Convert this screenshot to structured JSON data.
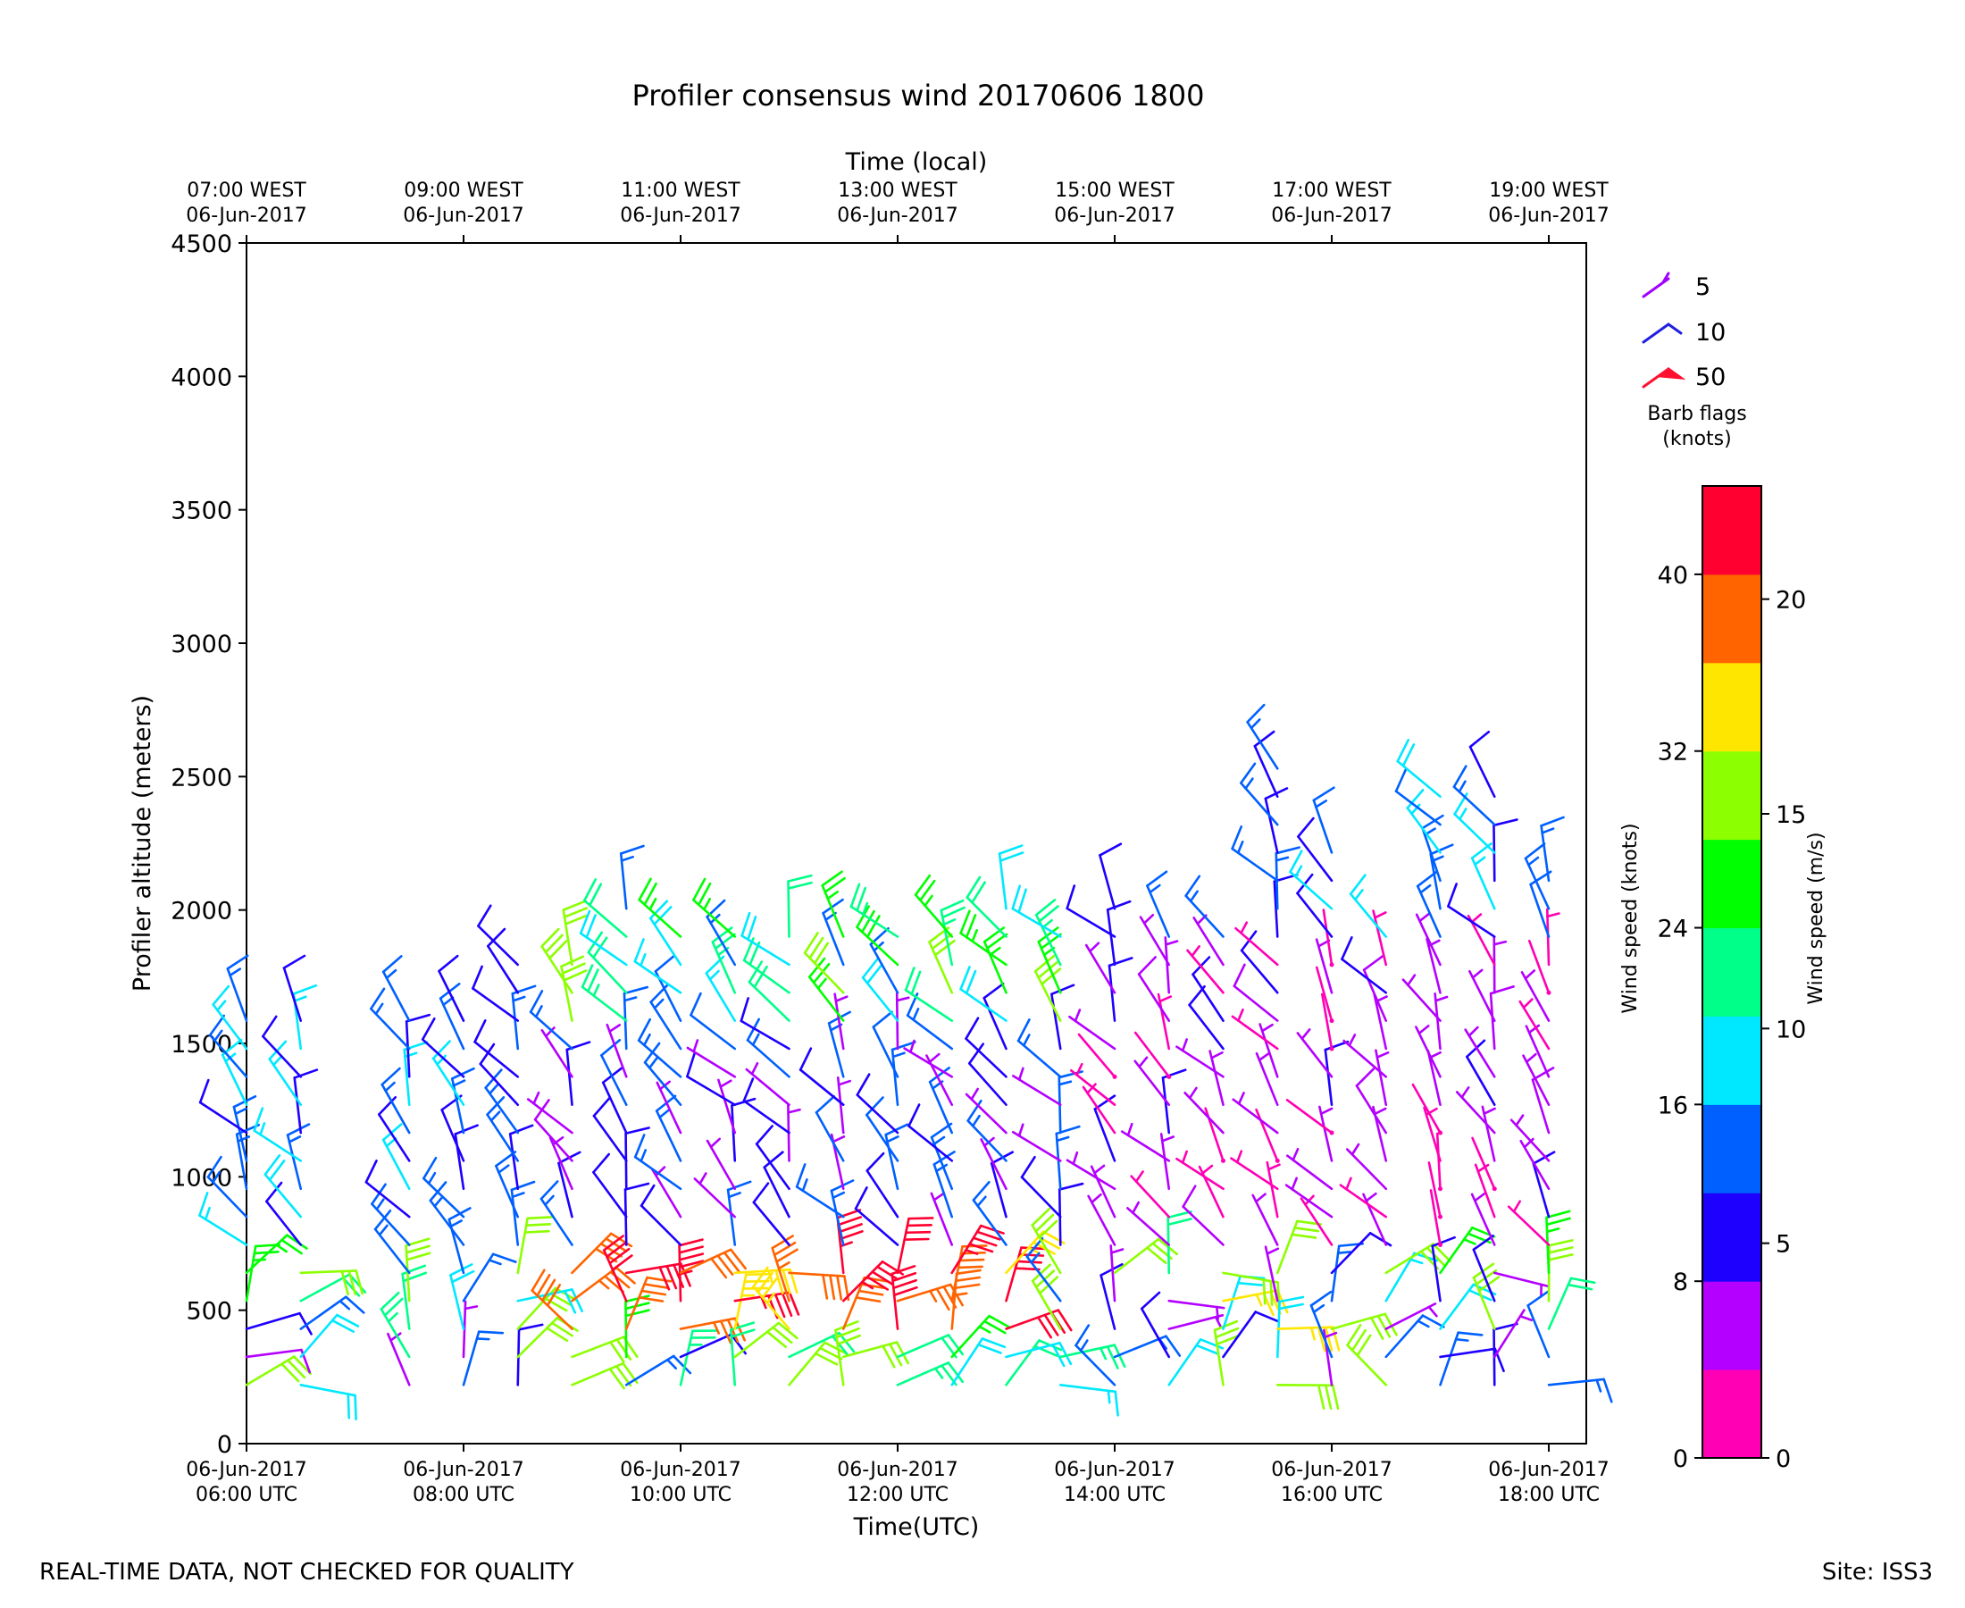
{
  "title": "Profiler consensus wind 20170606 1800",
  "footer_left": "REAL-TIME DATA, NOT CHECKED FOR QUALITY",
  "footer_right": "Site: ISS3",
  "legend": {
    "title_line1": "Barb flags",
    "title_line2": "(knots)",
    "items": [
      {
        "label": "5",
        "color": "#a000ff"
      },
      {
        "label": "10",
        "color": "#2020e0"
      },
      {
        "label": "50",
        "color": "#ff1030"
      }
    ]
  },
  "colorbar": {
    "label_knots": "Wind speed (knots)",
    "label_ms": "Wind speed (m/s)",
    "knots_ticks": [
      "0",
      "8",
      "16",
      "24",
      "32",
      "40"
    ],
    "ms_ticks": [
      "0",
      "5",
      "10",
      "15",
      "20"
    ],
    "colors": [
      "#ff00b4",
      "#b400ff",
      "#1e00ff",
      "#0060ff",
      "#00e8ff",
      "#00ff88",
      "#00ff00",
      "#8cff00",
      "#ffe600",
      "#ff6400",
      "#ff0030"
    ]
  },
  "chart_data": {
    "type": "wind_barbs",
    "title": "Profiler consensus wind 20170606 1800",
    "xlabel": "Time(UTC)",
    "xlabel_top": "Time (local)",
    "ylabel": "Profiler altitude (meters)",
    "ylim": [
      0,
      4500
    ],
    "yticks": [
      "0",
      "500",
      "1000",
      "1500",
      "2000",
      "2500",
      "3000",
      "3500",
      "4000",
      "4500"
    ],
    "xticks_bottom": [
      {
        "l1": "06-Jun-2017",
        "l2": "06:00 UTC"
      },
      {
        "l1": "06-Jun-2017",
        "l2": "08:00 UTC"
      },
      {
        "l1": "06-Jun-2017",
        "l2": "10:00 UTC"
      },
      {
        "l1": "06-Jun-2017",
        "l2": "12:00 UTC"
      },
      {
        "l1": "06-Jun-2017",
        "l2": "14:00 UTC"
      },
      {
        "l1": "06-Jun-2017",
        "l2": "16:00 UTC"
      },
      {
        "l1": "06-Jun-2017",
        "l2": "18:00 UTC"
      }
    ],
    "xticks_top": [
      {
        "l1": "07:00 WEST",
        "l2": "06-Jun-2017"
      },
      {
        "l1": "09:00 WEST",
        "l2": "06-Jun-2017"
      },
      {
        "l1": "11:00 WEST",
        "l2": "06-Jun-2017"
      },
      {
        "l1": "13:00 WEST",
        "l2": "06-Jun-2017"
      },
      {
        "l1": "15:00 WEST",
        "l2": "06-Jun-2017"
      },
      {
        "l1": "17:00 WEST",
        "l2": "06-Jun-2017"
      },
      {
        "l1": "19:00 WEST",
        "l2": "06-Jun-2017"
      }
    ],
    "times_utc": [
      "06:00",
      "06:30",
      "07:30",
      "08:00",
      "08:30",
      "09:00",
      "09:30",
      "10:00",
      "10:30",
      "11:00",
      "11:30",
      "12:00",
      "12:30",
      "13:00",
      "13:30",
      "14:00",
      "14:30",
      "15:00",
      "15:30",
      "16:00",
      "16:30",
      "17:00",
      "17:30",
      "18:00"
    ],
    "max_altitude_m": [
      1650,
      1650,
      1600,
      1600,
      1800,
      1850,
      2050,
      1900,
      2000,
      2000,
      2000,
      1900,
      2000,
      2050,
      1900,
      2100,
      2000,
      1950,
      2600,
      2250,
      2000,
      2500,
      2500,
      2150
    ],
    "speed_range_knots": [
      0,
      44
    ]
  }
}
